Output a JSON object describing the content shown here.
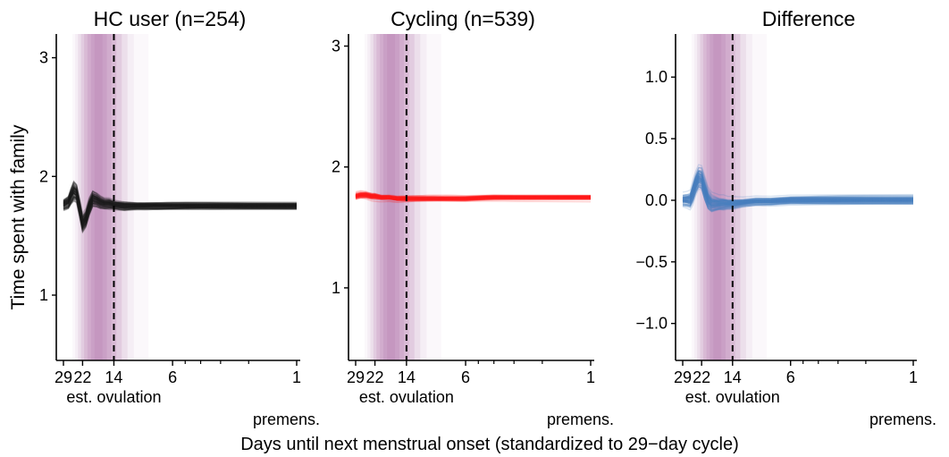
{
  "figure": {
    "ylabel": "Time spent with family",
    "xlabel": "Days until next menstrual onset (standardized to 29−day cycle)",
    "ovulation_label": "est. ovulation",
    "premens_label": "premens."
  },
  "chart_data": [
    {
      "type": "line",
      "title": "HC user (n=254)",
      "color": "#1a1a1a",
      "n_lines": 254,
      "x_ticks": [
        "29",
        "22",
        "14",
        "6",
        "1"
      ],
      "x_tick_values": [
        29,
        22,
        14,
        6,
        1
      ],
      "x_minor_ticks": [
        5,
        4,
        3,
        2
      ],
      "xlim": [
        29,
        1
      ],
      "x_scale": "log (reversed)",
      "y_ticks": [
        "1",
        "2",
        "3"
      ],
      "y_tick_values": [
        1,
        2,
        3
      ],
      "ylim": [
        0.45,
        3.2
      ],
      "ovulation_day": 14,
      "mean_curve": {
        "x": [
          29,
          27,
          26,
          25,
          24,
          23,
          22,
          21,
          20,
          19,
          18,
          17,
          16,
          15,
          14,
          12,
          10,
          8,
          6,
          4,
          3,
          2,
          1
        ],
        "y": [
          1.76,
          1.78,
          1.83,
          1.87,
          1.85,
          1.73,
          1.6,
          1.64,
          1.74,
          1.81,
          1.8,
          1.78,
          1.77,
          1.77,
          1.76,
          1.75,
          1.75,
          1.75,
          1.75,
          1.75,
          1.75,
          1.75,
          1.75
        ]
      },
      "spread": [
        0.03,
        0.035,
        0.045,
        0.055,
        0.05,
        0.05,
        0.05,
        0.05,
        0.05,
        0.045,
        0.04,
        0.035,
        0.03,
        0.03,
        0.025,
        0.025,
        0.02,
        0.02,
        0.02,
        0.02,
        0.02,
        0.02,
        0.02
      ]
    },
    {
      "type": "line",
      "title": "Cycling (n=539)",
      "color": "#ff1a1a",
      "n_lines": 539,
      "x_ticks": [
        "29",
        "22",
        "14",
        "6",
        "1"
      ],
      "x_tick_values": [
        29,
        22,
        14,
        6,
        1
      ],
      "x_minor_ticks": [
        5,
        4,
        3,
        2
      ],
      "xlim": [
        29,
        1
      ],
      "x_scale": "log (reversed)",
      "y_ticks": [
        "1",
        "2",
        "3"
      ],
      "y_tick_values": [
        1,
        2,
        3
      ],
      "ylim": [
        0.4,
        3.1
      ],
      "ovulation_day": 14,
      "mean_curve": {
        "x": [
          29,
          27,
          25,
          23,
          22,
          20,
          18,
          16,
          14,
          12,
          10,
          8,
          6,
          4,
          3,
          2,
          1
        ],
        "y": [
          1.76,
          1.77,
          1.77,
          1.76,
          1.76,
          1.75,
          1.75,
          1.74,
          1.74,
          1.74,
          1.74,
          1.74,
          1.74,
          1.75,
          1.75,
          1.75,
          1.75
        ]
      },
      "spread": [
        0.015,
        0.015,
        0.015,
        0.015,
        0.015,
        0.012,
        0.012,
        0.012,
        0.012,
        0.012,
        0.012,
        0.012,
        0.012,
        0.012,
        0.012,
        0.012,
        0.012
      ]
    },
    {
      "type": "line",
      "title": "Difference",
      "color": "#4a7fbf",
      "x_ticks": [
        "29",
        "22",
        "14",
        "6",
        "1"
      ],
      "x_tick_values": [
        29,
        22,
        14,
        6,
        1
      ],
      "x_minor_ticks": [
        5,
        4,
        3,
        2
      ],
      "xlim": [
        29,
        1
      ],
      "x_scale": "log (reversed)",
      "y_ticks": [
        "1.0",
        "0.5",
        "0.0",
        "−0.5",
        "−1.0"
      ],
      "y_tick_values": [
        1.0,
        0.5,
        0.0,
        -0.5,
        -1.0
      ],
      "ylim": [
        -1.3,
        1.35
      ],
      "ovulation_day": 14,
      "mean_curve": {
        "x": [
          29,
          27,
          26,
          25,
          24,
          23,
          22,
          21,
          20,
          19,
          18,
          17,
          16,
          15,
          14,
          12,
          10,
          8,
          6,
          4,
          3,
          2,
          1
        ],
        "y": [
          0.0,
          0.0,
          0.0,
          0.06,
          0.13,
          0.18,
          0.17,
          0.08,
          0.0,
          -0.03,
          -0.03,
          -0.03,
          -0.03,
          -0.03,
          -0.03,
          -0.02,
          -0.01,
          -0.01,
          0.0,
          0.0,
          0.0,
          0.0,
          0.0
        ]
      },
      "spread": [
        0.03,
        0.035,
        0.04,
        0.05,
        0.05,
        0.05,
        0.05,
        0.05,
        0.045,
        0.04,
        0.035,
        0.03,
        0.03,
        0.025,
        0.025,
        0.02,
        0.02,
        0.02,
        0.02,
        0.02,
        0.02,
        0.02,
        0.02
      ]
    }
  ],
  "fertile_window": {
    "color": "#a04d95",
    "bands": [
      {
        "from": 25.5,
        "to": 8.5,
        "opacity": 0.04
      },
      {
        "from": 24.5,
        "to": 10.5,
        "opacity": 0.06
      },
      {
        "from": 23.5,
        "to": 11.5,
        "opacity": 0.09
      },
      {
        "from": 22.5,
        "to": 12.5,
        "opacity": 0.12
      },
      {
        "from": 21.5,
        "to": 13.5,
        "opacity": 0.14
      },
      {
        "from": 20.5,
        "to": 14.5,
        "opacity": 0.12
      },
      {
        "from": 19.5,
        "to": 15.5,
        "opacity": 0.12
      },
      {
        "from": 18.5,
        "to": 16.5,
        "opacity": 0.1
      }
    ]
  }
}
